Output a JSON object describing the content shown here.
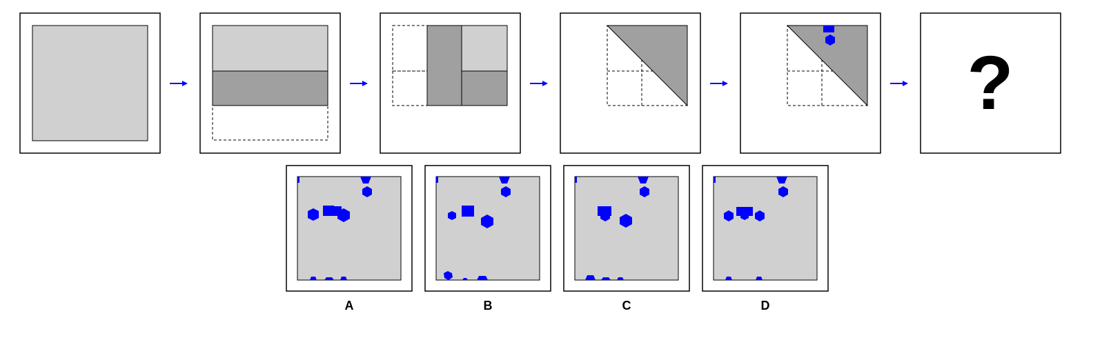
{
  "colors": {
    "frame": "#000000",
    "light_gray": "#d0d0d0",
    "dark_gray": "#a0a0a0",
    "accent_blue": "#0000ff",
    "arrow_blue": "#0000ff",
    "background": "#ffffff"
  },
  "sequence": {
    "steps": [
      {
        "name": "unfolded-square"
      },
      {
        "name": "fold-bottom-up"
      },
      {
        "name": "fold-left-right"
      },
      {
        "name": "fold-diagonal"
      },
      {
        "name": "punch-holes"
      }
    ],
    "question_mark": "?"
  },
  "options": [
    {
      "label": "A"
    },
    {
      "label": "B"
    },
    {
      "label": "C"
    },
    {
      "label": "D"
    }
  ]
}
